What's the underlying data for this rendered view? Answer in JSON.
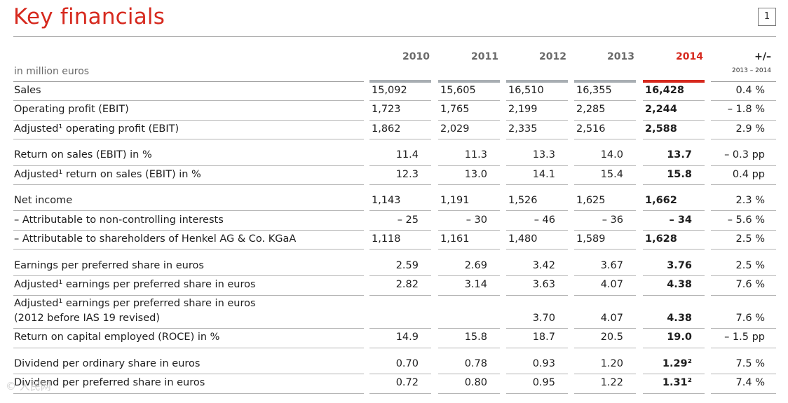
{
  "page": {
    "title": "Key financials",
    "page_number": "1",
    "unit_label": "in million euros",
    "change_header": "+/–",
    "change_subheader": "2013 – 2014",
    "years": [
      "2010",
      "2011",
      "2012",
      "2013",
      "2014"
    ],
    "watermark": "© 人民网"
  },
  "rows": [
    {
      "label": "Sales",
      "values": [
        "15,092",
        "15,605",
        "16,510",
        "16,355",
        "16,428"
      ],
      "change": "0.4 %"
    },
    {
      "label": "Operating profit (EBIT)",
      "values": [
        "1,723",
        "1,765",
        "2,199",
        "2,285",
        "2,244"
      ],
      "change": "– 1.8 %"
    },
    {
      "label": "Adjusted¹ operating profit (EBIT)",
      "values": [
        "1,862",
        "2,029",
        "2,335",
        "2,516",
        "2,588"
      ],
      "change": "2.9 %"
    },
    {
      "label": "Return on sales (EBIT) in %",
      "values": [
        "11.4",
        "11.3",
        "13.3",
        "14.0",
        "13.7"
      ],
      "change": "– 0.3 pp"
    },
    {
      "label": "Adjusted¹ return on sales (EBIT) in %",
      "values": [
        "12.3",
        "13.0",
        "14.1",
        "15.4",
        "15.8"
      ],
      "change": "0.4 pp"
    },
    {
      "label": "Net income",
      "values": [
        "1,143",
        "1,191",
        "1,526",
        "1,625",
        "1,662"
      ],
      "change": "2.3 %"
    },
    {
      "label": "– Attributable to non-controlling interests",
      "values": [
        "– 25",
        "– 30",
        "– 46",
        "– 36",
        "– 34"
      ],
      "change": "– 5.6 %"
    },
    {
      "label": "– Attributable to shareholders of Henkel AG & Co. KGaA",
      "values": [
        "1,118",
        "1,161",
        "1,480",
        "1,589",
        "1,628"
      ],
      "change": "2.5 %"
    },
    {
      "label": "Earnings per preferred share in euros",
      "values": [
        "2.59",
        "2.69",
        "3.42",
        "3.67",
        "3.76"
      ],
      "change": "2.5 %"
    },
    {
      "label": "Adjusted¹ earnings per preferred share in euros",
      "values": [
        "2.82",
        "3.14",
        "3.63",
        "4.07",
        "4.38"
      ],
      "change": "7.6 %"
    },
    {
      "label": "Adjusted¹ earnings per preferred share in euros",
      "label2": "(2012 before IAS 19 revised)",
      "values": [
        "",
        "",
        "3.70",
        "4.07",
        "4.38"
      ],
      "change": "7.6 %"
    },
    {
      "label": "Return on capital employed (ROCE) in %",
      "values": [
        "14.9",
        "15.8",
        "18.7",
        "20.5",
        "19.0"
      ],
      "change": "– 1.5 pp"
    },
    {
      "label": "Dividend per ordinary share in euros",
      "values": [
        "0.70",
        "0.78",
        "0.93",
        "1.20",
        "1.29²"
      ],
      "change": "7.5 %"
    },
    {
      "label": "Dividend per preferred share in euros",
      "values": [
        "0.72",
        "0.80",
        "0.95",
        "1.22",
        "1.31²"
      ],
      "change": "7.4 %"
    }
  ]
}
